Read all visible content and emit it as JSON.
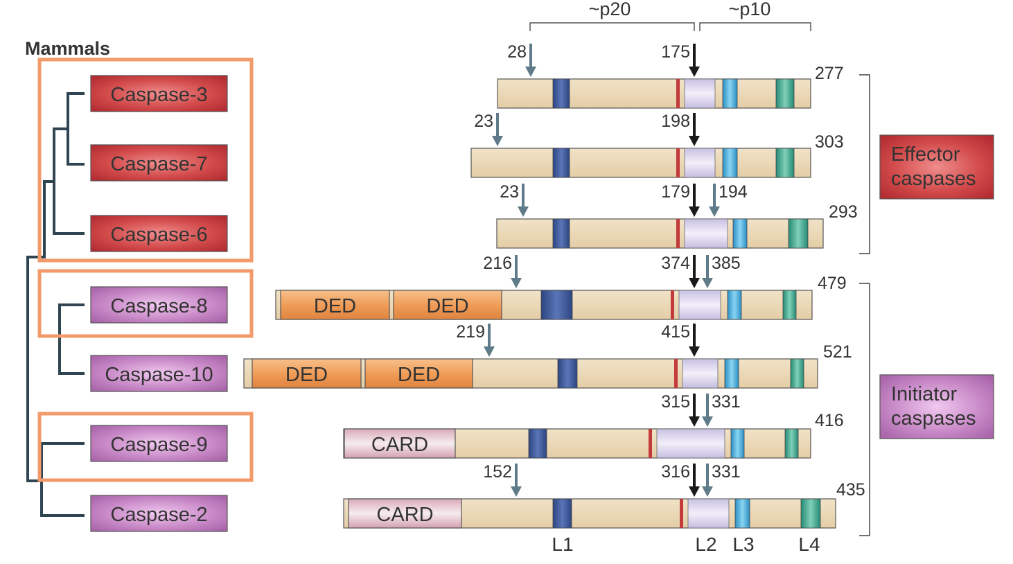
{
  "heading": "Mammals",
  "caspases": [
    {
      "id": "c3",
      "name": "Caspase-3",
      "group": "effector",
      "length": "277",
      "cleavage": [
        {
          "label": "28",
          "color": "grey"
        },
        {
          "label": "175",
          "color": "black"
        }
      ],
      "domains": []
    },
    {
      "id": "c7",
      "name": "Caspase-7",
      "group": "effector",
      "length": "303",
      "cleavage": [
        {
          "label": "23",
          "color": "grey"
        },
        {
          "label": "198",
          "color": "black"
        }
      ],
      "domains": []
    },
    {
      "id": "c6",
      "name": "Caspase-6",
      "group": "effector",
      "length": "293",
      "cleavage": [
        {
          "label": "23",
          "color": "grey"
        },
        {
          "label": "179",
          "color": "black"
        },
        {
          "label": "194",
          "color": "grey"
        }
      ],
      "domains": []
    },
    {
      "id": "c8",
      "name": "Caspase-8",
      "group": "initiator",
      "length": "479",
      "cleavage": [
        {
          "label": "216",
          "color": "grey"
        },
        {
          "label": "374",
          "color": "black"
        },
        {
          "label": "385",
          "color": "grey"
        }
      ],
      "domains": [
        "DED",
        "DED"
      ]
    },
    {
      "id": "c10",
      "name": "Caspase-10",
      "group": "initiator",
      "length": "521",
      "cleavage": [
        {
          "label": "219",
          "color": "grey"
        },
        {
          "label": "415",
          "color": "black"
        }
      ],
      "domains": [
        "DED",
        "DED"
      ]
    },
    {
      "id": "c9",
      "name": "Caspase-9",
      "group": "initiator",
      "length": "416",
      "cleavage": [
        {
          "label": "315",
          "color": "black"
        },
        {
          "label": "331",
          "color": "grey"
        }
      ],
      "domains": [
        "CARD"
      ]
    },
    {
      "id": "c2",
      "name": "Caspase-2",
      "group": "initiator",
      "length": "435",
      "cleavage": [
        {
          "label": "152",
          "color": "grey"
        },
        {
          "label": "316",
          "color": "black"
        },
        {
          "label": "331",
          "color": "grey"
        }
      ],
      "domains": [
        "CARD"
      ]
    }
  ],
  "subunits": [
    "~p20",
    "~p10"
  ],
  "loops": [
    "L1",
    "L2",
    "L3",
    "L4"
  ],
  "groups": {
    "effector": {
      "line1": "Effector",
      "line2": "caspases"
    },
    "initiator": {
      "line1": "Initiator",
      "line2": "caspases"
    }
  },
  "colors": {
    "effector": "#c8373a",
    "initiator": "#b86db8",
    "highlight_box": "#f39a6a",
    "bar_body": "#ecd8b6",
    "ded": "#ef9a55",
    "card": "#e0bcc8",
    "loop1": "#3f5a9a",
    "loop2": "#c23a3a",
    "subunit_link": "#d8d2ea",
    "loop3": "#3aa7d8",
    "loop4": "#3aa590",
    "arrow_black": "#1a1a1a",
    "arrow_grey": "#5f7a88",
    "tree": "#2f4552"
  }
}
